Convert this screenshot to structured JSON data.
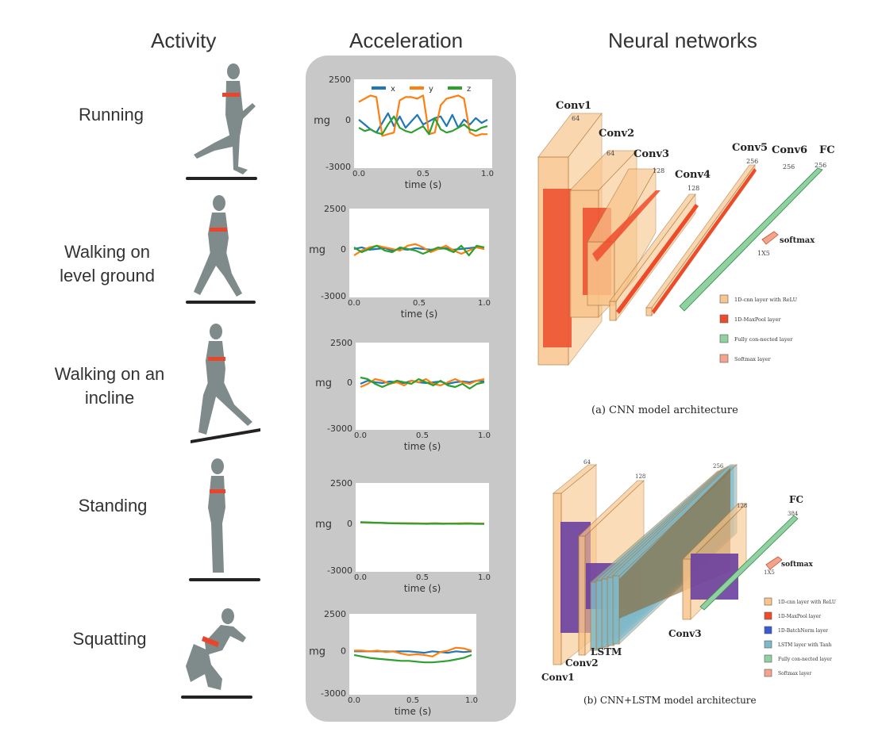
{
  "headers": {
    "activity": "Activity",
    "acceleration": "Acceleration",
    "networks": "Neural networks"
  },
  "activities": [
    {
      "label_lines": [
        "Running"
      ]
    },
    {
      "label_lines": [
        "Walking on",
        "level ground"
      ]
    },
    {
      "label_lines": [
        "Walking on an",
        "incline"
      ]
    },
    {
      "label_lines": [
        "Standing"
      ]
    },
    {
      "label_lines": [
        "Squatting"
      ]
    }
  ],
  "chart_data": [
    {
      "type": "line",
      "title": "Running",
      "ylabel": "mg",
      "xlabel": "time (s)",
      "ylim": [
        -3000,
        2500
      ],
      "ytick_labels": [
        "2500",
        "0",
        "-3000"
      ],
      "xtick_labels": [
        "0.0",
        "0.5",
        "1.0"
      ],
      "legend": [
        "x",
        "y",
        "z"
      ],
      "series": [
        {
          "name": "x",
          "color": "#1f77b4",
          "values": [
            0,
            -300,
            -600,
            -800,
            -200,
            400,
            -400,
            200,
            -500,
            -100,
            300,
            -300,
            -100,
            100,
            200,
            -400,
            300,
            -500,
            0,
            -300,
            100,
            -200,
            0
          ]
        },
        {
          "name": "y",
          "color": "#ff7f0e",
          "values": [
            1100,
            1300,
            1500,
            1400,
            -1000,
            -900,
            -800,
            1200,
            1400,
            1400,
            1300,
            1500,
            -900,
            -800,
            900,
            1300,
            1400,
            1500,
            1300,
            -800,
            -1000,
            -900,
            -900
          ]
        },
        {
          "name": "z",
          "color": "#2ca02c",
          "values": [
            -500,
            -700,
            -600,
            -800,
            -900,
            -300,
            200,
            -500,
            -700,
            -800,
            -600,
            -400,
            -900,
            100,
            -600,
            -800,
            -700,
            -500,
            -300,
            -600,
            -700,
            -500,
            -400
          ]
        }
      ]
    },
    {
      "type": "line",
      "title": "Walking on level ground",
      "ylabel": "mg",
      "xlabel": "time (s)",
      "ylim": [
        -3000,
        2500
      ],
      "ytick_labels": [
        "2500",
        "0",
        "-3000"
      ],
      "xtick_labels": [
        "0.0",
        "0.5",
        "1.0"
      ],
      "series": [
        {
          "name": "x",
          "color": "#1f77b4",
          "values": [
            0,
            100,
            -50,
            0,
            50,
            -100,
            0,
            -50,
            50,
            0,
            -50,
            0,
            50,
            -50,
            0,
            50,
            100,
            0
          ]
        },
        {
          "name": "y",
          "color": "#ff7f0e",
          "values": [
            -400,
            -100,
            100,
            200,
            100,
            0,
            -100,
            200,
            300,
            100,
            -200,
            0,
            200,
            -100,
            -300,
            -100,
            100,
            0
          ]
        },
        {
          "name": "z",
          "color": "#2ca02c",
          "values": [
            100,
            -200,
            0,
            200,
            -100,
            -200,
            100,
            0,
            -100,
            -300,
            -100,
            100,
            0,
            -200,
            200,
            -400,
            200,
            100
          ]
        }
      ]
    },
    {
      "type": "line",
      "title": "Walking on an incline",
      "ylabel": "mg",
      "xlabel": "time (s)",
      "ylim": [
        -3000,
        2500
      ],
      "ytick_labels": [
        "2500",
        "0",
        "-3000"
      ],
      "xtick_labels": [
        "0.0",
        "0.5",
        "1.0"
      ],
      "series": [
        {
          "name": "x",
          "color": "#1f77b4",
          "values": [
            -100,
            100,
            0,
            -50,
            50,
            0,
            -50,
            100,
            0,
            -50,
            0,
            50,
            -100,
            0,
            50,
            0,
            100,
            50
          ]
        },
        {
          "name": "y",
          "color": "#ff7f0e",
          "values": [
            -300,
            -100,
            200,
            100,
            -100,
            0,
            -200,
            100,
            0,
            200,
            -100,
            -200,
            0,
            200,
            0,
            -100,
            100,
            200
          ]
        },
        {
          "name": "z",
          "color": "#2ca02c",
          "values": [
            300,
            200,
            -100,
            -300,
            -100,
            100,
            0,
            -100,
            200,
            0,
            -200,
            100,
            -200,
            -300,
            -100,
            -400,
            -100,
            0
          ]
        }
      ]
    },
    {
      "type": "line",
      "title": "Standing",
      "ylabel": "mg",
      "xlabel": "time (s)",
      "ylim": [
        -3000,
        2500
      ],
      "ytick_labels": [
        "2500",
        "0",
        "-3000"
      ],
      "xtick_labels": [
        "0.0",
        "0.5",
        "1.0"
      ],
      "series": [
        {
          "name": "x",
          "color": "#1f77b4",
          "values": [
            50,
            40,
            30,
            20,
            10,
            0,
            0,
            -10,
            -10,
            0,
            -10,
            -20,
            -10,
            0,
            -10,
            -20
          ]
        },
        {
          "name": "y",
          "color": "#ff7f0e",
          "values": [
            60,
            50,
            30,
            20,
            10,
            10,
            0,
            0,
            -10,
            0,
            -10,
            -10,
            0,
            0,
            -10,
            -10
          ]
        },
        {
          "name": "z",
          "color": "#2ca02c",
          "values": [
            80,
            60,
            40,
            20,
            0,
            -10,
            -20,
            -20,
            -30,
            -20,
            -30,
            -20,
            -30,
            -20,
            -30,
            -40
          ]
        }
      ]
    },
    {
      "type": "line",
      "title": "Squatting",
      "ylabel": "mg",
      "xlabel": "time (s)",
      "ylim": [
        -3000,
        2500
      ],
      "ytick_labels": [
        "2500",
        "0",
        "-3000"
      ],
      "xtick_labels": [
        "0.0",
        "0.5",
        "1.0"
      ],
      "series": [
        {
          "name": "x",
          "color": "#1f77b4",
          "values": [
            -50,
            -50,
            -50,
            -40,
            -50,
            -60,
            -50,
            -50,
            -100,
            -150,
            -50,
            -100,
            -150,
            -50,
            -100,
            -50
          ]
        },
        {
          "name": "y",
          "color": "#ff7f0e",
          "values": [
            0,
            0,
            -50,
            0,
            -100,
            -50,
            -200,
            -300,
            -250,
            -300,
            -400,
            -100,
            0,
            200,
            150,
            0
          ]
        },
        {
          "name": "z",
          "color": "#2ca02c",
          "values": [
            -300,
            -400,
            -500,
            -550,
            -600,
            -650,
            -700,
            -700,
            -750,
            -800,
            -800,
            -750,
            -700,
            -600,
            -500,
            -300
          ]
        }
      ]
    }
  ],
  "cnn": {
    "caption": "(a) CNN model architecture",
    "layers": [
      "Conv1",
      "Conv2",
      "Conv3",
      "Conv4",
      "Conv5",
      "Conv6",
      "FC"
    ],
    "dims": [
      "64",
      "64",
      "128",
      "128",
      "256",
      "256",
      "256"
    ],
    "softmax_label": "softmax",
    "softmax_dim": "1X5",
    "legend": [
      "1D-cnn layer with ReLU",
      "1D-MaxPool layer",
      "Fully con-nected layer",
      "Softmax layer"
    ]
  },
  "cnn_lstm": {
    "caption": "(b) CNN+LSTM model architecture",
    "labels": [
      "Conv1",
      "Conv2",
      "LSTM",
      "Conv3",
      "FC"
    ],
    "dims": [
      "64",
      "128",
      "256",
      "128",
      "384"
    ],
    "softmax_label": "softmax",
    "softmax_dim": "1X5",
    "legend": [
      "1D-cnn layer with ReLU",
      "1D-MaxPool layer",
      "1D-BatchNorm layer",
      "LSTM layer with Tanh",
      "Fully con-nected layer",
      "Softmax layer"
    ]
  },
  "colors": {
    "figure": "#7f8a8a",
    "band": "#e8452c",
    "panel": "#c8c8c8",
    "orange_layer": "#f9c58c",
    "red_layer": "#ee4b2b",
    "purple_layer": "#6a3fa0",
    "green_layer": "#8fd1a0",
    "lstm_layer": "#7fb9c9"
  }
}
